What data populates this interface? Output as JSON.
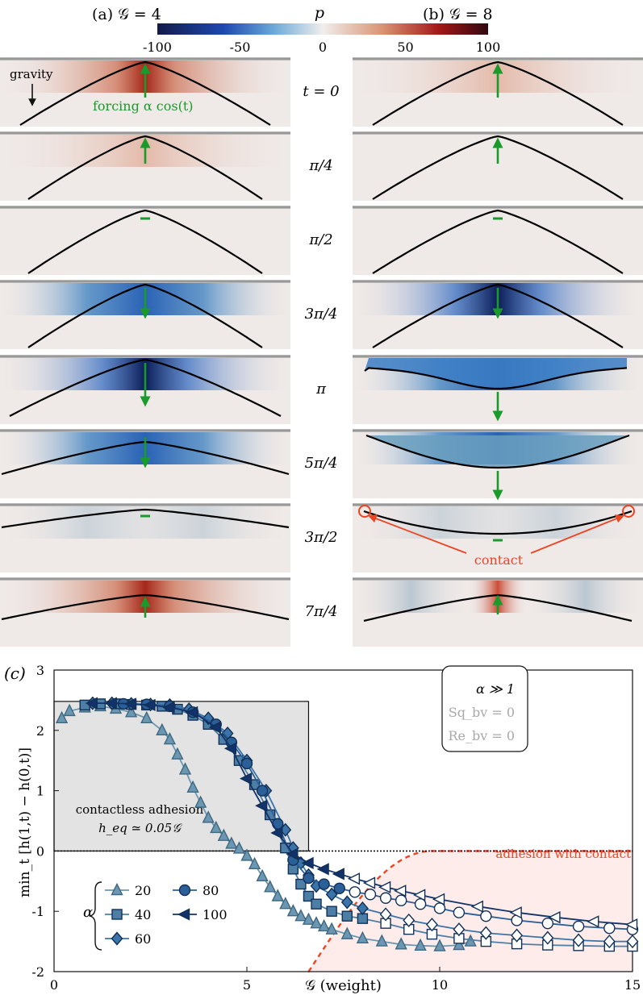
{
  "header": {
    "panel_a": "(a) 𝒢 = 4",
    "panel_b": "(b) 𝒢 = 8",
    "colorbar_label": "p",
    "colorbar_ticks": [
      "-100",
      "-50",
      "0",
      "50",
      "100"
    ]
  },
  "annotations": {
    "gravity": "gravity",
    "forcing": "forcing α cos(t)",
    "contact": "contact"
  },
  "time_labels": [
    "t = 0",
    "π/4",
    "π/2",
    "3π/4",
    "π",
    "5π/4",
    "3π/2",
    "7π/4"
  ],
  "colors": {
    "cmap_negative": "#2a62b5",
    "cmap_positive": "#b83a1c",
    "panel_bg": "#efe9e7",
    "arrow": "#1a9a2a",
    "contact": "#ee4422",
    "series": [
      "#6b97b3",
      "#4d7fa6",
      "#3b74a8",
      "#2a5f98",
      "#11326a"
    ]
  },
  "chart_data": {
    "type": "line",
    "panel_label": "(c)",
    "xlabel": "𝒢 (weight)",
    "ylabel": "min_t [h(1,t) − h(0,t)]",
    "xlim": [
      0,
      15
    ],
    "ylim": [
      -2,
      3
    ],
    "xticks": [
      "0",
      "5",
      "10",
      "15"
    ],
    "yticks": [
      "3",
      "2",
      "1",
      "0",
      "-1",
      "-2"
    ],
    "legend_alpha": "α",
    "legend_title_lines": [
      "α ≫ 1",
      "Sq_bv = 0",
      "Re_bv = 0"
    ],
    "region_contactless": [
      "contactless adhesion",
      "h_eq ≃ 0.05𝒢"
    ],
    "region_contact": "adhesion with contact",
    "series": [
      {
        "name": "20",
        "marker": "triangle-up",
        "x": [
          0.2,
          0.4,
          0.8,
          1.2,
          1.6,
          2.0,
          2.4,
          2.8,
          3.0,
          3.2,
          3.4,
          3.6,
          3.8,
          4.0,
          4.2,
          4.4,
          4.6,
          4.8,
          5.0,
          5.2,
          5.4,
          5.6,
          5.8,
          6.0,
          6.2,
          6.4,
          6.6,
          6.8,
          7.0,
          7.2,
          7.6,
          8.0,
          8.5,
          9.0,
          9.5,
          10.0,
          10.5,
          10.8
        ],
        "y": [
          2.2,
          2.32,
          2.38,
          2.4,
          2.36,
          2.3,
          2.2,
          2.0,
          1.85,
          1.6,
          1.35,
          1.05,
          0.8,
          0.55,
          0.38,
          0.25,
          0.12,
          0.04,
          -0.08,
          -0.22,
          -0.42,
          -0.6,
          -0.75,
          -0.88,
          -1.0,
          -1.08,
          -1.14,
          -1.2,
          -1.25,
          -1.3,
          -1.38,
          -1.45,
          -1.5,
          -1.55,
          -1.57,
          -1.58,
          -1.56,
          -1.5
        ]
      },
      {
        "name": "40",
        "marker": "square",
        "x": [
          0.8,
          1.2,
          1.6,
          2.0,
          2.4,
          2.8,
          3.2,
          3.6,
          4.0,
          4.4,
          4.8,
          5.2,
          5.6,
          6.0,
          6.2,
          6.4,
          6.6,
          6.8,
          7.2,
          7.6,
          8.0,
          8.6,
          9.2,
          9.8,
          10.5,
          11.2,
          12.0,
          12.8,
          13.6,
          14.4,
          15.0
        ],
        "y": [
          2.42,
          2.44,
          2.44,
          2.43,
          2.42,
          2.4,
          2.35,
          2.25,
          2.1,
          1.85,
          1.5,
          1.1,
          0.6,
          0.05,
          -0.3,
          -0.55,
          -0.75,
          -0.88,
          -1.0,
          -1.08,
          -1.12,
          -1.2,
          -1.3,
          -1.38,
          -1.45,
          -1.5,
          -1.54,
          -1.56,
          -1.57,
          -1.58,
          -1.58
        ]
      },
      {
        "name": "60",
        "marker": "diamond",
        "x": [
          1.0,
          1.5,
          2.0,
          2.5,
          3.0,
          3.5,
          4.0,
          4.5,
          5.0,
          5.5,
          6.0,
          6.2,
          6.4,
          6.6,
          6.8,
          7.2,
          7.6,
          8.0,
          8.6,
          9.2,
          9.8,
          10.5,
          11.2,
          12.0,
          12.8,
          13.6,
          14.4,
          15.0
        ],
        "y": [
          2.45,
          2.45,
          2.44,
          2.43,
          2.42,
          2.35,
          2.2,
          1.95,
          1.5,
          1.0,
          0.35,
          0.05,
          -0.2,
          -0.4,
          -0.58,
          -0.72,
          -0.85,
          -0.95,
          -1.05,
          -1.15,
          -1.22,
          -1.3,
          -1.36,
          -1.4,
          -1.44,
          -1.48,
          -1.5,
          -1.5
        ]
      },
      {
        "name": "80",
        "marker": "circle",
        "x": [
          1.8,
          2.4,
          3.0,
          3.6,
          4.2,
          4.6,
          5.0,
          5.4,
          5.8,
          6.2,
          6.6,
          7.0,
          7.4,
          7.8,
          8.2,
          8.6,
          9.0,
          9.5,
          10.0,
          10.5,
          11.2,
          12.0,
          12.8,
          13.6,
          14.4,
          15.0
        ],
        "y": [
          2.44,
          2.43,
          2.4,
          2.3,
          2.1,
          1.8,
          1.45,
          1.0,
          0.45,
          -0.15,
          -0.45,
          -0.55,
          -0.62,
          -0.68,
          -0.72,
          -0.78,
          -0.82,
          -0.88,
          -0.95,
          -1.02,
          -1.08,
          -1.15,
          -1.2,
          -1.25,
          -1.28,
          -1.3
        ]
      },
      {
        "name": "100",
        "marker": "triangle-left",
        "x": [
          1.0,
          1.5,
          2.0,
          2.5,
          3.0,
          3.6,
          4.2,
          4.6,
          5.0,
          5.4,
          5.8,
          6.2,
          6.6,
          7.0,
          7.4,
          7.8,
          8.2,
          8.6,
          9.0,
          9.5,
          10.0,
          11.0,
          12.0,
          13.0,
          14.0,
          15.0
        ],
        "y": [
          2.45,
          2.45,
          2.44,
          2.42,
          2.38,
          2.3,
          2.05,
          1.7,
          1.2,
          0.75,
          0.3,
          -0.05,
          -0.2,
          -0.3,
          -0.38,
          -0.46,
          -0.53,
          -0.6,
          -0.66,
          -0.73,
          -0.8,
          -0.92,
          -1.02,
          -1.1,
          -1.17,
          -1.22
        ]
      }
    ]
  }
}
